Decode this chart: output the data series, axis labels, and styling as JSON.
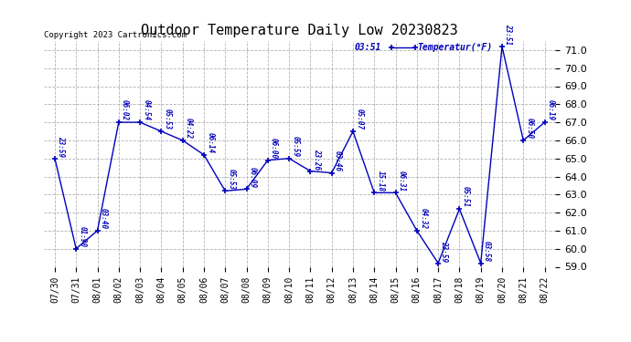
{
  "title": "Outdoor Temperature Daily Low 20230823",
  "copyright_text": "Copyright 2023 Cartronics.com",
  "legend_label": "Temperatur(°F)",
  "legend_time": "03:51",
  "background_color": "#ffffff",
  "line_color": "#0000bb",
  "text_color": "#0000bb",
  "grid_color": "#aaaaaa",
  "dates": [
    "07/30",
    "07/31",
    "08/01",
    "08/02",
    "08/03",
    "08/04",
    "08/05",
    "08/06",
    "08/07",
    "08/08",
    "08/09",
    "08/10",
    "08/11",
    "08/12",
    "08/13",
    "08/14",
    "08/15",
    "08/16",
    "08/17",
    "08/18",
    "08/19",
    "08/20",
    "08/21",
    "08/22"
  ],
  "values": [
    65.0,
    60.0,
    61.0,
    67.0,
    67.0,
    66.5,
    66.0,
    65.2,
    63.2,
    63.3,
    64.9,
    65.0,
    64.3,
    64.2,
    66.5,
    63.1,
    63.1,
    61.0,
    59.2,
    62.2,
    59.2,
    71.2,
    66.0,
    67.0
  ],
  "time_labels": [
    "23:59",
    "01:90",
    "03:40",
    "06:02",
    "04:54",
    "05:53",
    "04:22",
    "06:14",
    "05:53",
    "06:09",
    "06:00",
    "05:59",
    "23:26",
    "03:46",
    "05:07",
    "15:18",
    "06:31",
    "04:32",
    "23:59",
    "05:51",
    "03:58",
    "23:51",
    "06:50",
    "06:19"
  ],
  "ylim": [
    59.0,
    71.5
  ],
  "yticks": [
    59.0,
    60.0,
    61.0,
    62.0,
    63.0,
    64.0,
    65.0,
    66.0,
    67.0,
    68.0,
    69.0,
    70.0,
    71.0
  ]
}
